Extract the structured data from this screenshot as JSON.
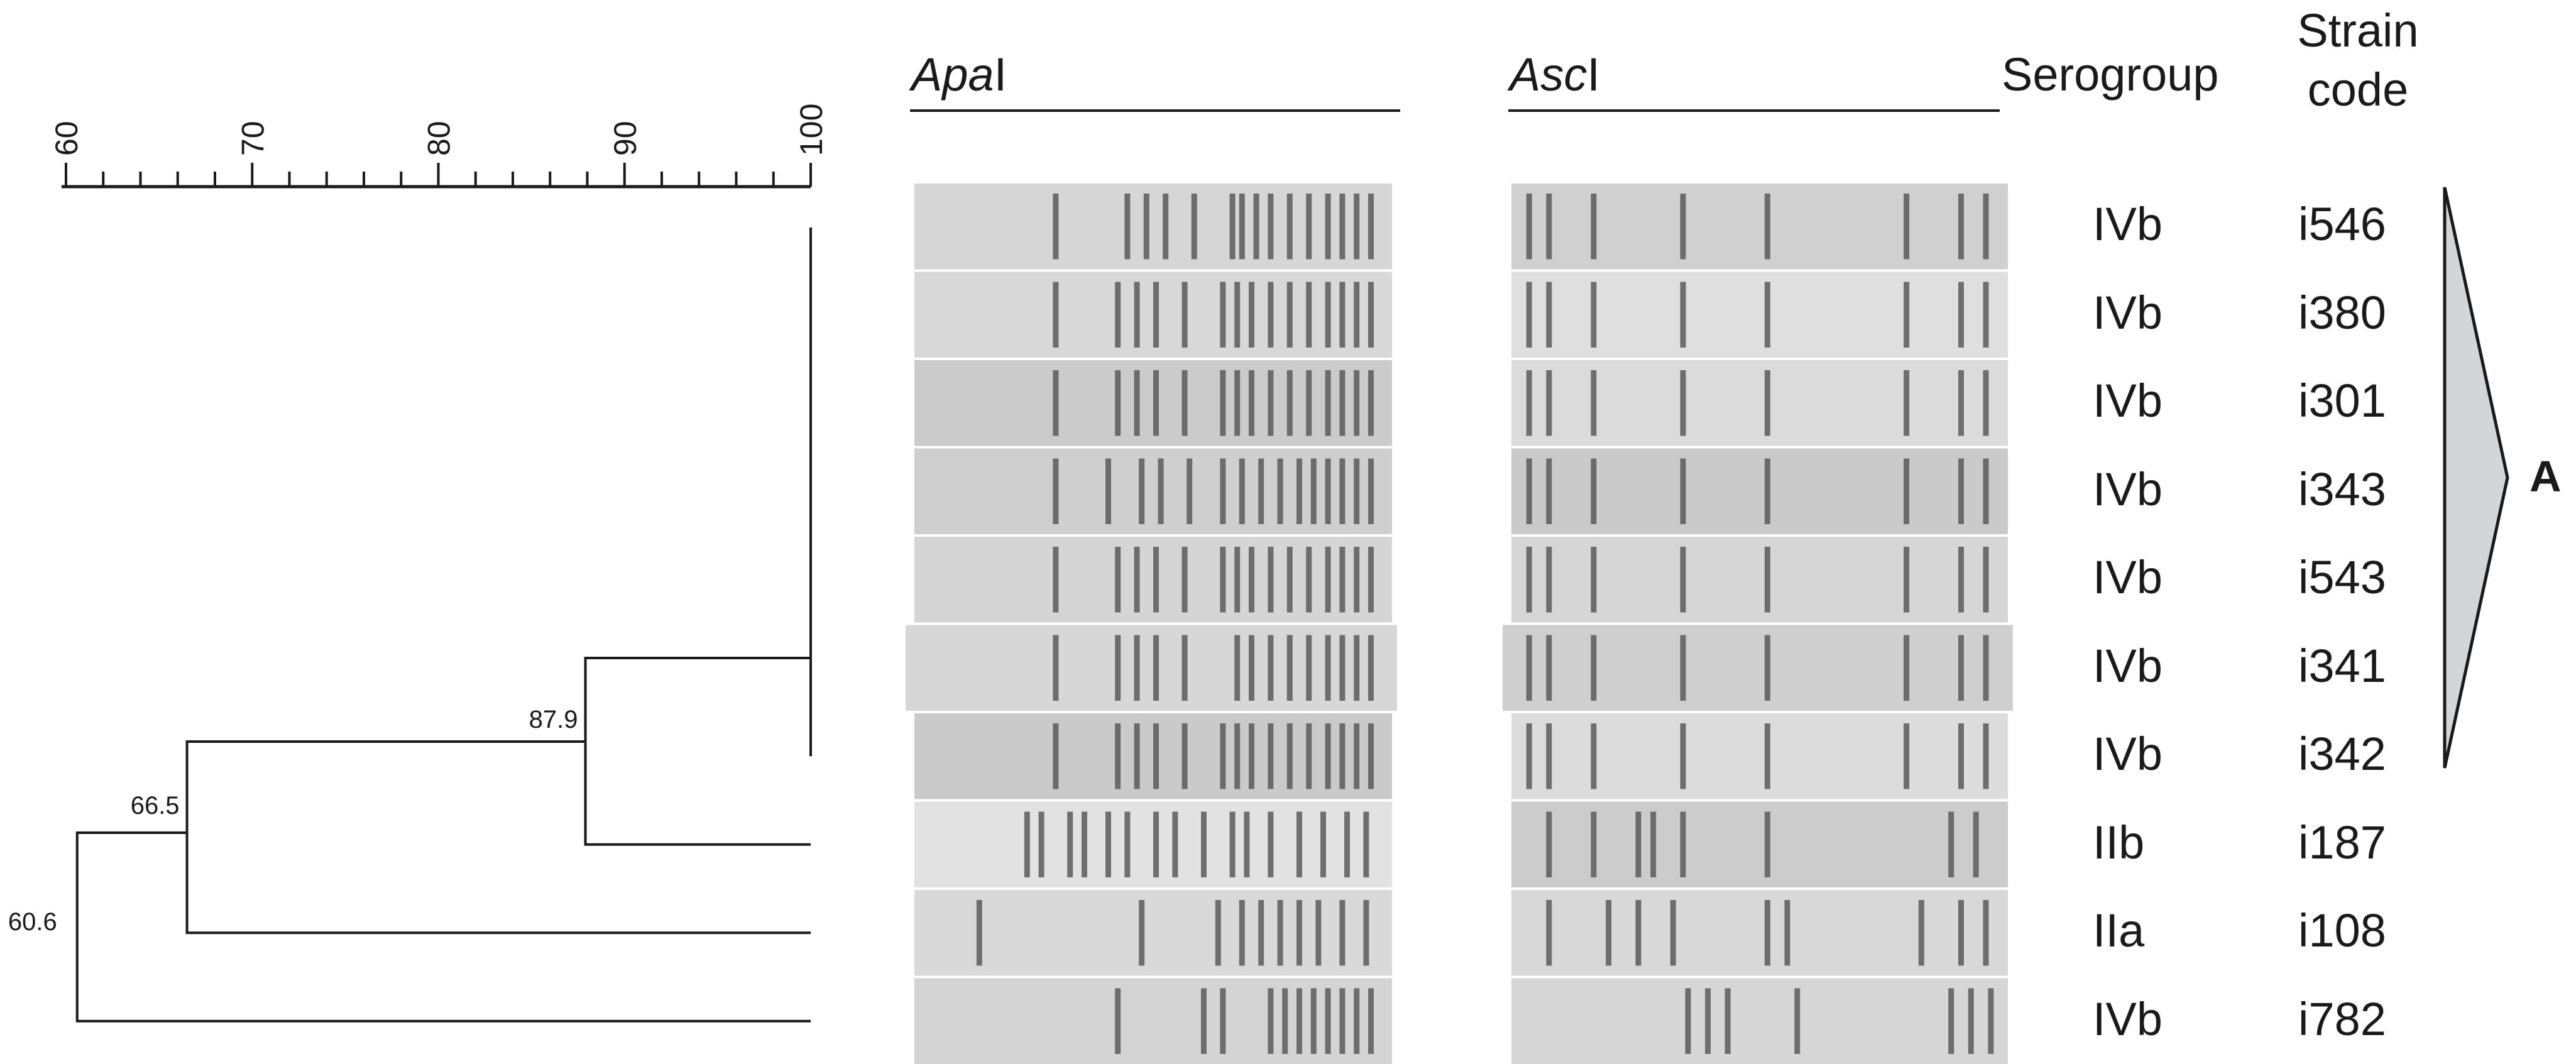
{
  "scale": {
    "ticks": [
      "60",
      "70",
      "80",
      "90",
      "100"
    ],
    "min": 60,
    "max": 100
  },
  "dendrogram": {
    "node_labels": [
      "87.9",
      "66.5",
      "60.6"
    ],
    "nodes": [
      {
        "label": "87.9",
        "similarity": 87.9
      },
      {
        "label": "66.5",
        "similarity": 66.5
      },
      {
        "label": "60.6",
        "similarity": 60.6
      }
    ]
  },
  "headers": {
    "apa_italic": "Apa",
    "apa_roman": "I",
    "asc_italic": "Asc",
    "asc_roman": "I",
    "serogroup": "Serogroup",
    "strain_line1": "Strain",
    "strain_line2": "code"
  },
  "rows": [
    {
      "serogroup": "IVb",
      "strain": "i546"
    },
    {
      "serogroup": "IVb",
      "strain": "i380"
    },
    {
      "serogroup": "IVb",
      "strain": "i301"
    },
    {
      "serogroup": "IVb",
      "strain": "i343"
    },
    {
      "serogroup": "IVb",
      "strain": "i543"
    },
    {
      "serogroup": "IVb",
      "strain": "i341"
    },
    {
      "serogroup": "IVb",
      "strain": "i342"
    },
    {
      "serogroup": "IIb",
      "strain": "i187"
    },
    {
      "serogroup": "IIa",
      "strain": "i108"
    },
    {
      "serogroup": "IVb",
      "strain": "i782"
    }
  ],
  "cluster": {
    "label": "A"
  },
  "colors": {
    "line": "#1a1a1a",
    "gel_background": "#d4d4d4",
    "band": "#5a5a5a",
    "cluster_fill": "#d2d6d9"
  }
}
